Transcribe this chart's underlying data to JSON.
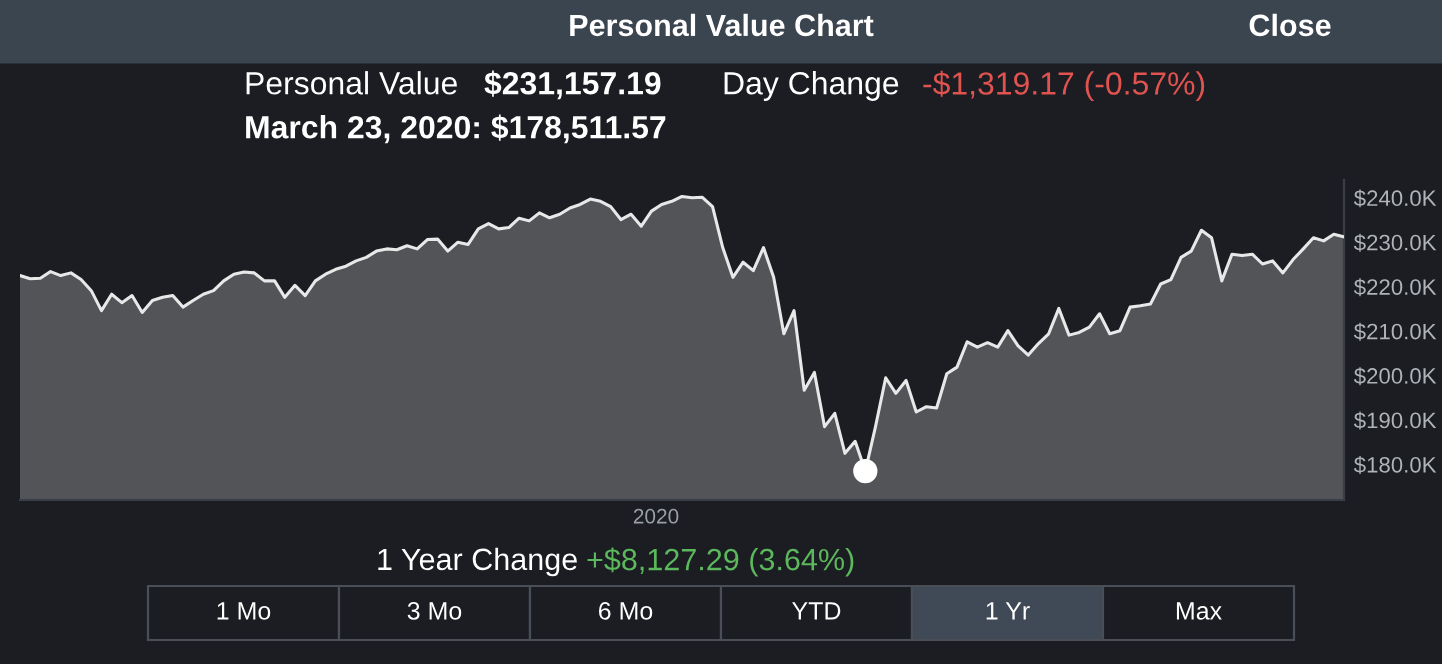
{
  "chart_data": {
    "type": "area",
    "title": "Personal Value Chart",
    "annotations": [
      "Close",
      "Personal Value",
      "$231,157.19",
      "Day Change",
      "-$1,319.17 (-0.57%)",
      "March 23, 2020: $178,511.57",
      "1 Year Change",
      "+$8,127.29 (3.64%)",
      "2020",
      "1 Mo",
      "3 Mo",
      "6 Mo",
      "YTD",
      "1 Yr",
      "Max"
    ],
    "categories": [
      null,
      null,
      null,
      null,
      null,
      null,
      null,
      null,
      null,
      null,
      null,
      null,
      null,
      null,
      null,
      null,
      null,
      null,
      null,
      null,
      null,
      null,
      null,
      null,
      null,
      null,
      null,
      null,
      null,
      null,
      null,
      null,
      null,
      null,
      null,
      null,
      null,
      null,
      null,
      null,
      null,
      null,
      null,
      null,
      null,
      null,
      null,
      null,
      null,
      null,
      null,
      null,
      null,
      null,
      null,
      null,
      null,
      null,
      null,
      null,
      null,
      null,
      null,
      null,
      null,
      null,
      null,
      null,
      null,
      null,
      null,
      null,
      null,
      null,
      null,
      null,
      null,
      null,
      null,
      null,
      null,
      null,
      null,
      null,
      null,
      null,
      null,
      null,
      null,
      null,
      null,
      null,
      null,
      null,
      null,
      null,
      null,
      null,
      null,
      null,
      null,
      null,
      null,
      null,
      null,
      null,
      null,
      null,
      null,
      null,
      null,
      null,
      null,
      null,
      null,
      null,
      null,
      null,
      null,
      null,
      null,
      null,
      null,
      null,
      null,
      null,
      null,
      null,
      null,
      null,
      null
    ],
    "series": [
      {
        "color": "#e8e8e8",
        "values": [
          222.5,
          221.8,
          221.9,
          223.4,
          222.5,
          223.1,
          221.6,
          219.1,
          214.6,
          218.3,
          216.4,
          218.0,
          214.2,
          216.9,
          217.6,
          218.0,
          215.4,
          216.9,
          218.3,
          219.1,
          221.3,
          222.8,
          223.3,
          223.1,
          221.3,
          221.3,
          217.6,
          220.3,
          218.0,
          221.3,
          222.8,
          223.9,
          224.6,
          225.8,
          226.6,
          228.0,
          228.5,
          228.3,
          229.2,
          228.5,
          230.6,
          230.7,
          228.0,
          230.0,
          229.5,
          233.0,
          234.2,
          233.0,
          233.3,
          235.4,
          234.8,
          236.6,
          235.5,
          236.3,
          237.7,
          238.5,
          239.7,
          239.2,
          238.0,
          235.1,
          236.3,
          233.6,
          237.0,
          238.5,
          239.2,
          240.3,
          240.0,
          240.1,
          238.0,
          228.8,
          222.1,
          225.5,
          223.6,
          228.8,
          222.1,
          209.4,
          214.6,
          196.7,
          200.7,
          188.5,
          191.5,
          182.5,
          185.2,
          178.5,
          188.5,
          199.5,
          196.0,
          198.9,
          191.8,
          193.0,
          192.7,
          200.4,
          201.9,
          207.6,
          206.4,
          207.4,
          206.4,
          210.1,
          206.7,
          204.6,
          207.2,
          209.4,
          215.1,
          209.1,
          209.7,
          210.9,
          213.9,
          209.4,
          210.1,
          215.4,
          215.7,
          216.1,
          220.6,
          221.6,
          226.6,
          228.0,
          232.7,
          231.0,
          221.3,
          227.3,
          227.0,
          227.3,
          225.1,
          225.8,
          223.1,
          226.1,
          228.5,
          231.0,
          230.3,
          231.8,
          231.2
        ]
      },
      {
        "type": "scatter",
        "color": "#ffffff",
        "marker": "circle",
        "values": [
          null,
          null,
          null,
          null,
          null,
          null,
          null,
          null,
          null,
          null,
          null,
          null,
          null,
          null,
          null,
          null,
          null,
          null,
          null,
          null,
          null,
          null,
          null,
          null,
          null,
          null,
          null,
          null,
          null,
          null,
          null,
          null,
          null,
          null,
          null,
          null,
          null,
          null,
          null,
          null,
          null,
          null,
          null,
          null,
          null,
          null,
          null,
          null,
          null,
          null,
          null,
          null,
          null,
          null,
          null,
          null,
          null,
          null,
          null,
          null,
          null,
          null,
          null,
          null,
          null,
          null,
          null,
          null,
          null,
          null,
          null,
          null,
          null,
          null,
          null,
          null,
          null,
          null,
          null,
          null,
          null,
          null,
          null,
          178.5,
          null,
          null,
          null,
          null,
          null,
          null,
          null,
          null,
          null,
          null,
          null,
          null,
          null,
          null,
          null,
          null,
          null,
          null,
          null,
          null,
          null,
          null,
          null,
          null,
          null,
          null,
          null,
          null,
          null,
          null,
          null,
          null,
          null,
          null,
          null,
          null,
          null,
          null,
          null,
          null,
          null,
          null,
          null,
          null,
          null,
          null,
          null
        ]
      }
    ],
    "ylim": [
      172,
      244
    ],
    "yticks": [
      {
        "value": 180,
        "label": "$180.0K"
      },
      {
        "value": 190,
        "label": "$190.0K"
      },
      {
        "value": 200,
        "label": "$200.0K"
      },
      {
        "value": 210,
        "label": "$210.0K"
      },
      {
        "value": 220,
        "label": "$220.0K"
      },
      {
        "value": 230,
        "label": "$230.0K"
      },
      {
        "value": 240,
        "label": "$240.0K"
      }
    ],
    "tick_labels": "y",
    "marker": "none",
    "line_style": "solid"
  }
}
